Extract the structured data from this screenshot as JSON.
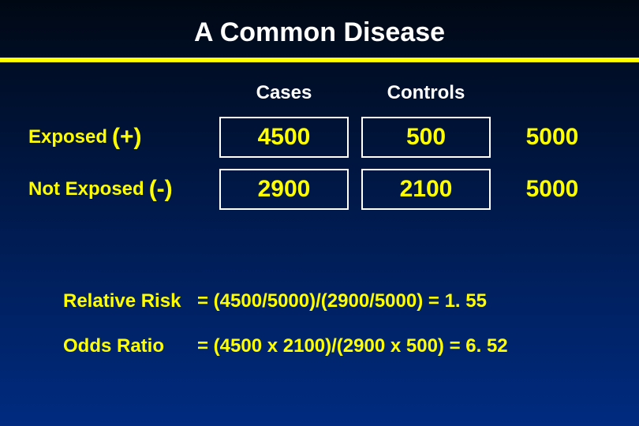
{
  "title": {
    "text": "A Common Disease",
    "fontsize": 34,
    "color": "#ffffff",
    "underline_color": "#ffff00",
    "underline_height": 6
  },
  "background": {
    "gradient_top": "#000814",
    "gradient_mid": "#001a4d",
    "gradient_bottom": "#002b80"
  },
  "table": {
    "type": "table",
    "header_fontsize": 24,
    "rowlabel_fontsize": 24,
    "rowlabel_sign_fontsize": 30,
    "cell_fontsize": 30,
    "total_fontsize": 30,
    "text_color": "#ffff00",
    "header_color": "#ffffff",
    "cell_border_color": "#ffffff",
    "columns": [
      "Cases",
      "Controls"
    ],
    "rows": [
      {
        "label": "Exposed",
        "sign": "(+)",
        "cases": "4500",
        "controls": "500",
        "total": "5000"
      },
      {
        "label": "Not Exposed",
        "sign": "(-)",
        "cases": "2900",
        "controls": "2100",
        "total": "5000"
      }
    ]
  },
  "formulas": {
    "fontsize": 24,
    "color": "#ffff00",
    "lines": [
      {
        "label": "Relative Risk",
        "eq": "= (4500/5000)/(2900/5000) = 1. 55"
      },
      {
        "label": "Odds Ratio",
        "eq": "= (4500 x 2100)/(2900 x 500) = 6. 52"
      }
    ]
  }
}
